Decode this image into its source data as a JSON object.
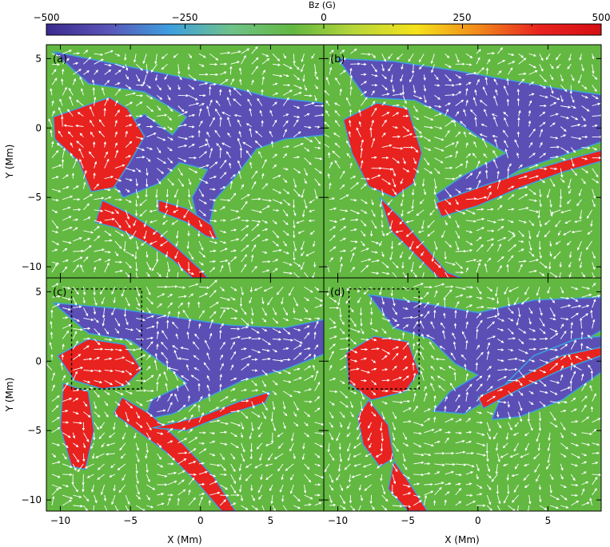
{
  "figure": {
    "colorbar": {
      "label": "Bz (G)",
      "ticks": [
        "−500",
        "−250",
        "0",
        "250",
        "500"
      ],
      "range": [
        -500,
        500
      ],
      "colors": [
        "#3b2a8f",
        "#5a55b8",
        "#3d9fe0",
        "#6fc28a",
        "#62b840",
        "#b8d63a",
        "#f5e21b",
        "#f28a1c",
        "#e8221e",
        "#d60f14"
      ]
    },
    "palette": {
      "background_field": "#62b840",
      "negative_polarity": "#5b4fb5",
      "positive_polarity": "#e8221e",
      "arrows": "#ffffff"
    }
  },
  "chart_data": [
    {
      "type": "heatmap",
      "panel_label": "(a)",
      "xlabel": "",
      "ylabel": "Y (Mm)",
      "xticks": [],
      "yticks": [
        "5",
        "0",
        "−5",
        "−10"
      ],
      "xlim": [
        -11,
        8.8
      ],
      "ylim": [
        -10.8,
        6
      ],
      "zlim": [
        -500,
        500
      ]
    },
    {
      "type": "heatmap",
      "panel_label": "(b)",
      "xlabel": "",
      "ylabel": "",
      "xticks": [],
      "yticks": [],
      "xlim": [
        -11,
        8.8
      ],
      "ylim": [
        -10.8,
        6
      ],
      "zlim": [
        -500,
        500
      ]
    },
    {
      "type": "heatmap",
      "panel_label": "(c)",
      "xlabel": "X (Mm)",
      "ylabel": "Y (Mm)",
      "xticks": [
        "−10",
        "−5",
        "0",
        "5"
      ],
      "yticks": [
        "5",
        "0",
        "−5",
        "−10"
      ],
      "xlim": [
        -11,
        8.8
      ],
      "ylim": [
        -10.8,
        6
      ],
      "zlim": [
        -500,
        500
      ],
      "box": {
        "x": [
          -9.2,
          -4.2
        ],
        "y": [
          -2,
          5.2
        ]
      }
    },
    {
      "type": "heatmap",
      "panel_label": "(d)",
      "xlabel": "X (Mm)",
      "ylabel": "",
      "xticks": [
        "−10",
        "−5",
        "0",
        "5"
      ],
      "yticks": [],
      "xlim": [
        -11,
        8.8
      ],
      "ylim": [
        -10.8,
        6
      ],
      "zlim": [
        -500,
        500
      ],
      "box": {
        "x": [
          -9.2,
          -4.2
        ],
        "y": [
          -2,
          5.2
        ]
      }
    }
  ]
}
